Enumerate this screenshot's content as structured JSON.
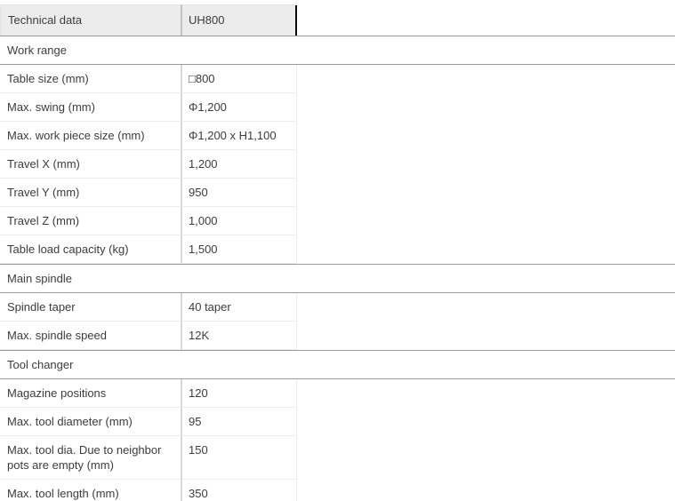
{
  "header": {
    "title": "Technical data",
    "model": "UH800"
  },
  "sections": [
    {
      "title": "Work range",
      "rows": [
        {
          "label": "Table size (mm)",
          "value": "□800"
        },
        {
          "label": "Max. swing (mm)",
          "value": "Φ1,200"
        },
        {
          "label": "Max. work piece size (mm)",
          "value": "Φ1,200 x H1,100"
        },
        {
          "label": "Travel X (mm)",
          "value": "1,200"
        },
        {
          "label": "Travel Y (mm)",
          "value": "950"
        },
        {
          "label": "Travel Z (mm)",
          "value": "1,000"
        },
        {
          "label": "Table load capacity (kg)",
          "value": "1,500"
        }
      ]
    },
    {
      "title": "Main spindle",
      "rows": [
        {
          "label": "Spindle taper",
          "value": "40 taper"
        },
        {
          "label": "Max. spindle speed",
          "value": "12K"
        }
      ]
    },
    {
      "title": "Tool changer",
      "rows": [
        {
          "label": "Magazine positions",
          "value": "120"
        },
        {
          "label": "Max. tool diameter (mm)",
          "value": "95"
        },
        {
          "label": "Max. tool dia. Due to neighbor pots are empty (mm)",
          "value": "150"
        },
        {
          "label": "Max. tool length (mm)",
          "value": "350"
        }
      ]
    }
  ],
  "colors": {
    "header_bg": "#ececec",
    "header_divider": "#c3c3c3",
    "section_line": "#9a9a9a",
    "row_line": "#ececec",
    "column_divider": "#d9d9d9",
    "text": "#3c3c3c",
    "caret": "#0a0a0a"
  }
}
